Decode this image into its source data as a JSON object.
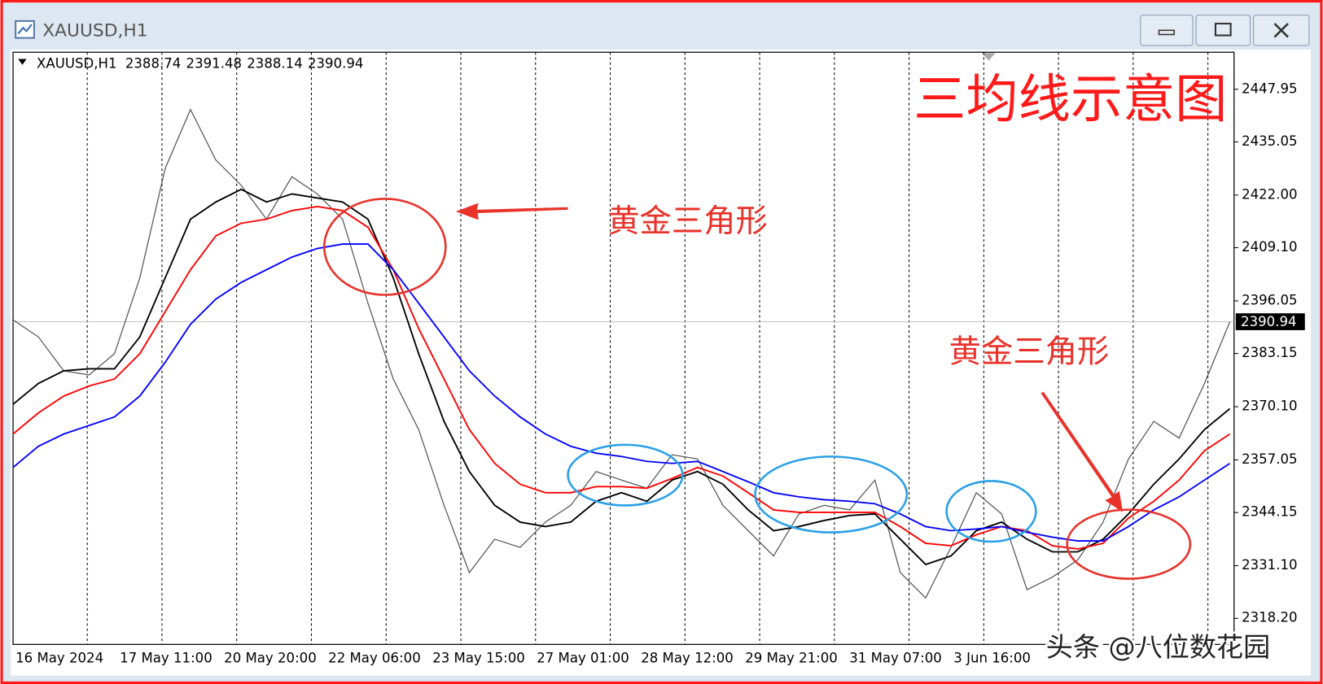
{
  "window": {
    "title": "XAUUSD,H1"
  },
  "chart_data": {
    "type": "line",
    "symbol": "XAUUSD,H1",
    "ohlc": [
      2388.74,
      2391.48,
      2388.14,
      2390.94
    ],
    "last_price": 2390.94,
    "title": "三均线示意图",
    "annotations": [
      "黄金三角形",
      "黄金三角形"
    ],
    "watermark": "头条 @八位数花园",
    "x_labels": [
      "16 May 2024",
      "17 May 11:00",
      "20 May 20:00",
      "22 May 06:00",
      "23 May 15:00",
      "27 May 01:00",
      "28 May 12:00",
      "29 May 21:00",
      "31 May 07:00",
      "3 Jun 16:00"
    ],
    "series": [
      {
        "color": "#555555",
        "values": [
          2391.4,
          2387.2,
          2378.9,
          2377.9,
          2383.1,
          2401.7,
          2428.5,
          2443.0,
          2430.6,
          2424.4,
          2416.1,
          2426.5,
          2422.3,
          2416.1,
          2395.5,
          2376.9,
          2364.5,
          2345.9,
          2329.4,
          2337.6,
          2335.6,
          2341.8,
          2345.9,
          2354.2,
          2352.1,
          2350.1,
          2358.3,
          2357.3,
          2345.9,
          2339.7,
          2333.5,
          2343.8,
          2345.9,
          2344.8,
          2352.1,
          2329.4,
          2323.2,
          2335.6,
          2349.0,
          2343.8,
          2325.2,
          2328.3,
          2332.5,
          2341.8,
          2357.3,
          2366.5,
          2362.4,
          2375.8,
          2390.9
        ]
      },
      {
        "color": "#000000",
        "values": [
          2370.7,
          2375.8,
          2378.9,
          2379.4,
          2379.4,
          2387.2,
          2401.7,
          2416.1,
          2420.3,
          2423.4,
          2420.3,
          2422.3,
          2421.3,
          2420.3,
          2416.1,
          2401.7,
          2383.1,
          2366.5,
          2354.2,
          2345.9,
          2341.8,
          2340.7,
          2341.8,
          2346.9,
          2349.0,
          2346.9,
          2352.1,
          2354.2,
          2351.1,
          2344.8,
          2339.7,
          2340.7,
          2342.2,
          2343.4,
          2343.8,
          2337.6,
          2331.4,
          2333.5,
          2339.7,
          2341.8,
          2337.6,
          2334.5,
          2334.5,
          2337.6,
          2343.8,
          2351.1,
          2357.3,
          2364.5,
          2369.6
        ]
      },
      {
        "color": "#ff0000",
        "values": [
          2363.4,
          2368.6,
          2372.7,
          2375.2,
          2376.9,
          2383.1,
          2393.4,
          2403.7,
          2412.0,
          2415.1,
          2416.1,
          2418.2,
          2419.2,
          2418.2,
          2414.1,
          2403.7,
          2389.3,
          2376.9,
          2364.5,
          2356.2,
          2351.1,
          2349.0,
          2349.0,
          2350.5,
          2350.5,
          2350.1,
          2352.5,
          2355.2,
          2353.1,
          2349.0,
          2344.8,
          2344.2,
          2344.2,
          2344.2,
          2344.2,
          2340.7,
          2336.6,
          2336.0,
          2338.7,
          2340.7,
          2339.7,
          2336.0,
          2335.2,
          2336.6,
          2342.8,
          2346.9,
          2352.1,
          2359.3,
          2363.4
        ]
      },
      {
        "color": "#0000ff",
        "values": [
          2355.2,
          2360.4,
          2363.4,
          2365.5,
          2367.6,
          2372.7,
          2381.0,
          2390.3,
          2396.5,
          2400.6,
          2403.7,
          2406.8,
          2408.9,
          2410.0,
          2410.0,
          2403.7,
          2395.5,
          2387.2,
          2378.9,
          2372.7,
          2367.6,
          2363.4,
          2360.4,
          2358.7,
          2357.9,
          2356.7,
          2356.2,
          2356.7,
          2354.2,
          2351.7,
          2349.0,
          2348.0,
          2347.3,
          2346.9,
          2346.3,
          2343.8,
          2340.7,
          2339.7,
          2340.1,
          2340.7,
          2339.3,
          2338.1,
          2337.2,
          2337.2,
          2340.7,
          2344.8,
          2348.0,
          2352.1,
          2356.2
        ]
      }
    ],
    "ylim": [
      2311.8,
      2457.04
    ],
    "yticks": [
      2447.95,
      2435.05,
      {
        "value": 2422,
        "label": "2422.00"
      },
      {
        "value": 2409.1,
        "label": "2409.10"
      },
      2396.05,
      2383.15,
      {
        "value": 2370.1,
        "label": "2370.10"
      },
      2357.05,
      2344.15,
      {
        "value": 2331.1,
        "label": "2331.10"
      },
      {
        "value": 2318.2,
        "label": "2318.20"
      }
    ]
  }
}
